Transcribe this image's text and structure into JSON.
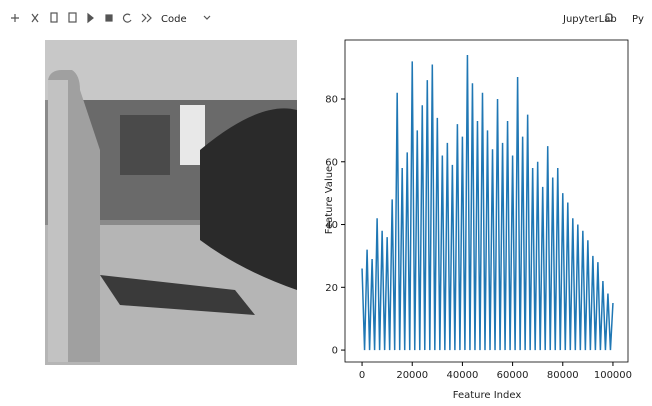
{
  "toolbar": {
    "cell_type": "Code",
    "app_name": "JupyterLab",
    "kernel": "Py"
  },
  "chart_data": {
    "type": "line",
    "xlabel": "Feature Index",
    "ylabel": "Feature Value",
    "color": "#1f77b4",
    "x": [
      0,
      1000,
      2000,
      3000,
      4000,
      5000,
      6000,
      7000,
      8000,
      9000,
      10000,
      11000,
      12000,
      13000,
      14000,
      15000,
      16000,
      17000,
      18000,
      19000,
      20000,
      21000,
      22000,
      23000,
      24000,
      25000,
      26000,
      27000,
      28000,
      29000,
      30000,
      31000,
      32000,
      33000,
      34000,
      35000,
      36000,
      37000,
      38000,
      39000,
      40000,
      41000,
      42000,
      43000,
      44000,
      45000,
      46000,
      47000,
      48000,
      49000,
      50000,
      51000,
      52000,
      53000,
      54000,
      55000,
      56000,
      57000,
      58000,
      59000,
      60000,
      61000,
      62000,
      63000,
      64000,
      65000,
      66000,
      67000,
      68000,
      69000,
      70000,
      71000,
      72000,
      73000,
      74000,
      75000,
      76000,
      77000,
      78000,
      79000,
      80000,
      81000,
      82000,
      83000,
      84000,
      85000,
      86000,
      87000,
      88000,
      89000,
      90000,
      91000,
      92000,
      93000,
      94000,
      95000,
      96000,
      97000,
      98000,
      99000,
      100000
    ],
    "values": [
      26,
      0,
      32,
      0,
      29,
      0,
      42,
      0,
      38,
      0,
      36,
      0,
      48,
      0,
      82,
      0,
      58,
      0,
      63,
      0,
      92,
      0,
      70,
      0,
      78,
      0,
      86,
      0,
      91,
      0,
      74,
      0,
      62,
      0,
      66,
      0,
      59,
      0,
      72,
      0,
      68,
      0,
      94,
      0,
      85,
      0,
      73,
      0,
      82,
      0,
      70,
      0,
      64,
      0,
      80,
      0,
      66,
      0,
      73,
      0,
      62,
      0,
      87,
      0,
      68,
      0,
      75,
      0,
      58,
      0,
      60,
      0,
      52,
      0,
      65,
      0,
      55,
      0,
      58,
      0,
      50,
      0,
      47,
      0,
      42,
      0,
      40,
      0,
      38,
      0,
      35,
      0,
      30,
      0,
      28,
      0,
      22,
      0,
      18,
      0,
      15
    ],
    "xlim": [
      -6800,
      106000
    ],
    "ylim": [
      -3.8,
      98.8
    ],
    "xticks": [
      0,
      20000,
      40000,
      60000,
      80000,
      100000
    ],
    "yticks": [
      0,
      20,
      40,
      60,
      80
    ]
  }
}
